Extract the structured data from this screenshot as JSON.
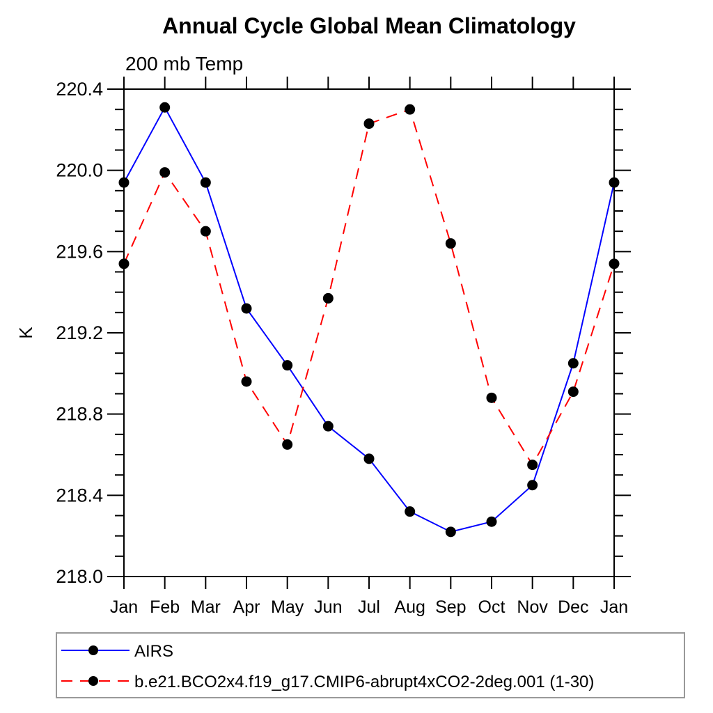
{
  "chart_data": {
    "type": "line",
    "title": "Annual Cycle Global Mean Climatology",
    "subtitle": "200 mb Temp",
    "ylabel": "K",
    "xlabel": "",
    "categories": [
      "Jan",
      "Feb",
      "Mar",
      "Apr",
      "May",
      "Jun",
      "Jul",
      "Aug",
      "Sep",
      "Oct",
      "Nov",
      "Dec",
      "Jan"
    ],
    "ylim": [
      218.0,
      220.4
    ],
    "ytick_step": 0.4,
    "yminor_step": 0.1,
    "grid": false,
    "legend_position": "bottom-left-box",
    "series": [
      {
        "name": "AIRS",
        "color": "#0000ff",
        "line_style": "solid",
        "marker": "circle",
        "marker_color": "#000000",
        "values": [
          219.94,
          220.31,
          219.94,
          219.32,
          219.04,
          218.74,
          218.58,
          218.32,
          218.22,
          218.27,
          218.45,
          219.05,
          219.94
        ]
      },
      {
        "name": "b.e21.BCO2x4.f19_g17.CMIP6-abrupt4xCO2-2deg.001 (1-30)",
        "color": "#ff0000",
        "line_style": "dashed",
        "marker": "circle",
        "marker_color": "#000000",
        "values": [
          219.54,
          219.99,
          219.7,
          218.96,
          218.65,
          219.37,
          220.23,
          220.3,
          219.64,
          218.88,
          218.55,
          218.91,
          219.54
        ]
      }
    ],
    "colors": {
      "axis": "#000000",
      "legend_border": "#999999",
      "background": "#ffffff"
    }
  }
}
